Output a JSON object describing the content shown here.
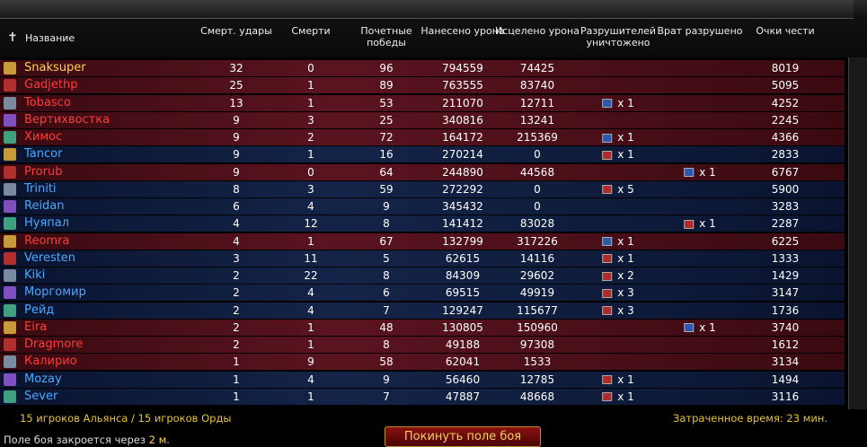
{
  "table": {
    "columns": [
      "Название",
      "Смерт. удары",
      "Смерти",
      "Почетные победы",
      "Нанесено урона",
      "Исцелено урона",
      "Разрушителей уничтожено",
      "Врат разрушено",
      "Очки чести"
    ],
    "rows": [
      {
        "faction": "horde",
        "cells": [
          "Snaksuper",
          32,
          0,
          96,
          794559,
          74425,
          null,
          null,
          8019
        ]
      },
      {
        "faction": "horde",
        "cells": [
          "Gadjethp",
          25,
          1,
          89,
          763555,
          83740,
          null,
          null,
          5095
        ]
      },
      {
        "faction": "horde",
        "cells": [
          "Tobasco",
          13,
          1,
          53,
          211070,
          12711,
          "x 1",
          null,
          4252
        ]
      },
      {
        "faction": "horde",
        "cells": [
          "Вертихвостка",
          9,
          3,
          25,
          340816,
          13241,
          null,
          null,
          2245
        ]
      },
      {
        "faction": "horde",
        "cells": [
          "Химос",
          9,
          2,
          72,
          164172,
          215369,
          "x 1",
          null,
          4366
        ]
      },
      {
        "faction": "alliance",
        "cells": [
          "Tancor",
          9,
          1,
          16,
          270214,
          0,
          "x 1",
          null,
          2833
        ]
      },
      {
        "faction": "horde",
        "cells": [
          "Prorub",
          9,
          0,
          64,
          244890,
          44568,
          null,
          "x 1",
          6767
        ]
      },
      {
        "faction": "alliance",
        "cells": [
          "Triniti",
          8,
          3,
          59,
          272292,
          0,
          "x 5",
          null,
          5900
        ]
      },
      {
        "faction": "alliance",
        "cells": [
          "Reidan",
          6,
          4,
          9,
          345432,
          0,
          null,
          null,
          3283
        ]
      },
      {
        "faction": "alliance",
        "cells": [
          "Нуяпал",
          4,
          12,
          8,
          141412,
          83028,
          null,
          "x 1",
          2287
        ]
      },
      {
        "faction": "horde",
        "cells": [
          "Reomra",
          4,
          1,
          67,
          132799,
          317226,
          "x 1",
          null,
          6225
        ]
      },
      {
        "faction": "alliance",
        "cells": [
          "Veresten",
          3,
          11,
          5,
          62615,
          14116,
          "x 1",
          null,
          1333
        ]
      },
      {
        "faction": "alliance",
        "cells": [
          "Kiki",
          2,
          22,
          8,
          84309,
          29602,
          "x 2",
          null,
          1429
        ]
      },
      {
        "faction": "alliance",
        "cells": [
          "Моргомир",
          2,
          4,
          6,
          69515,
          49919,
          "x 3",
          null,
          3147
        ]
      },
      {
        "faction": "alliance",
        "cells": [
          "Рейд",
          2,
          4,
          7,
          129247,
          115677,
          "x 3",
          null,
          1736
        ]
      },
      {
        "faction": "horde",
        "cells": [
          "Eira",
          2,
          1,
          48,
          130805,
          150960,
          null,
          "x 1",
          3740
        ]
      },
      {
        "faction": "horde",
        "cells": [
          "Dragmore",
          2,
          1,
          8,
          49188,
          97308,
          null,
          null,
          1612
        ]
      },
      {
        "faction": "horde",
        "cells": [
          "Калирио",
          1,
          9,
          58,
          62041,
          1533,
          null,
          null,
          3134
        ]
      },
      {
        "faction": "alliance",
        "cells": [
          "Mozay",
          1,
          4,
          9,
          56460,
          12785,
          "x 1",
          null,
          1494
        ]
      },
      {
        "faction": "alliance",
        "cells": [
          "Sever",
          1,
          1,
          7,
          47887,
          48668,
          "x 1",
          null,
          3116
        ]
      }
    ]
  },
  "footer": {
    "players": "15 игроков Альянса / 15 игроков Орды",
    "elapsed": "Затраченное время: 23 мин.",
    "closing": "Поле боя закроется через",
    "closing_time": "2 м.",
    "leave_button": "Покинуть поле боя"
  }
}
